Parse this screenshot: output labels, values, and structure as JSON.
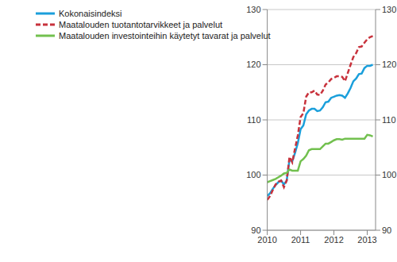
{
  "chart_data": {
    "type": "line",
    "x": [
      2010,
      2010.083,
      2010.167,
      2010.25,
      2010.333,
      2010.417,
      2010.5,
      2010.583,
      2010.667,
      2010.75,
      2010.833,
      2010.917,
      2011,
      2011.083,
      2011.167,
      2011.25,
      2011.333,
      2011.417,
      2011.5,
      2011.583,
      2011.667,
      2011.75,
      2011.833,
      2011.917,
      2012,
      2012.083,
      2012.167,
      2012.25,
      2012.333,
      2012.417,
      2012.5,
      2012.583,
      2012.667,
      2012.75,
      2012.833,
      2012.917,
      2013,
      2013.083,
      2013.167
    ],
    "series": [
      {
        "name": "Kokonaisindeksi",
        "color": "#1a9fdb",
        "line_style": "solid",
        "values": [
          96.2,
          96.7,
          97.5,
          98.2,
          98.7,
          99.0,
          98.3,
          99.0,
          102.8,
          102.5,
          104.0,
          105.8,
          108.3,
          109.0,
          111.0,
          111.7,
          112.0,
          112.0,
          111.6,
          111.7,
          112.3,
          113.2,
          113.3,
          114.0,
          114.2,
          114.4,
          114.5,
          114.4,
          114.0,
          114.8,
          115.8,
          117.0,
          117.5,
          118.3,
          118.4,
          119.4,
          119.8,
          119.8,
          120.0
        ]
      },
      {
        "name": "Maatalouden tuotantotarvikkeet ja palvelut",
        "color": "#c8323c",
        "line_style": "dashed",
        "values": [
          95.5,
          96.2,
          97.3,
          98.3,
          98.8,
          99.0,
          97.8,
          99.0,
          103.3,
          102.3,
          104.8,
          107.2,
          110.5,
          111.2,
          114.2,
          115.0,
          115.0,
          115.3,
          114.6,
          114.5,
          115.3,
          116.4,
          116.8,
          117.4,
          117.6,
          117.9,
          117.9,
          117.8,
          117.0,
          118.5,
          120.0,
          121.4,
          122.1,
          123.2,
          123.3,
          124.0,
          124.6,
          125.0,
          125.2
        ]
      },
      {
        "name": "Maatalouden investointeihin käytetyt tavarat ja palvelut",
        "color": "#72c04f",
        "line_style": "solid",
        "values": [
          98.7,
          98.9,
          99.1,
          99.3,
          99.6,
          99.9,
          100.3,
          100.4,
          101.0,
          100.8,
          100.8,
          100.8,
          102.5,
          102.9,
          103.5,
          104.5,
          104.7,
          104.7,
          104.7,
          104.7,
          105.2,
          105.7,
          105.7,
          106.0,
          106.3,
          106.5,
          106.5,
          106.4,
          106.6,
          106.6,
          106.6,
          106.6,
          106.6,
          106.6,
          106.6,
          106.6,
          107.3,
          107.2,
          107.0
        ]
      }
    ],
    "xlim": [
      2010,
      2013.25
    ],
    "xticks": [
      2010,
      2011,
      2012,
      2013
    ],
    "ylim": [
      90,
      130
    ],
    "yticks": [
      90,
      100,
      110,
      120,
      130
    ],
    "grid": true,
    "legend": "upper left"
  }
}
